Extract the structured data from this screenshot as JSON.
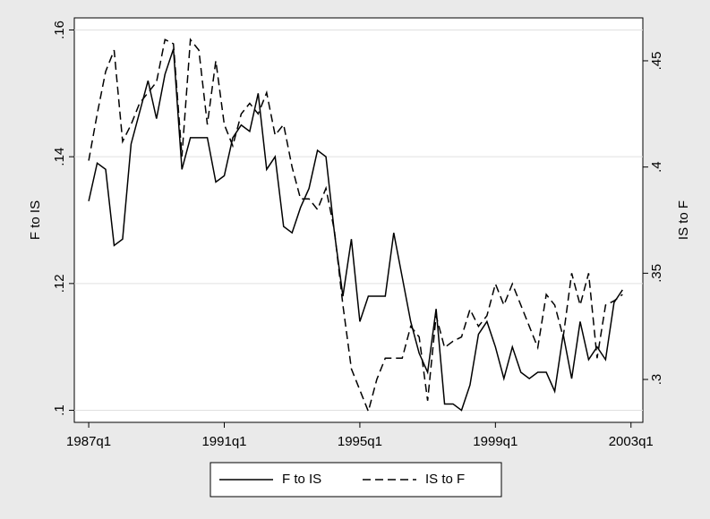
{
  "chart_data": {
    "type": "line",
    "x": [
      108,
      109,
      110,
      111,
      112,
      113,
      114,
      115,
      116,
      117,
      118,
      119,
      120,
      121,
      122,
      123,
      124,
      125,
      126,
      127,
      128,
      129,
      130,
      131,
      132,
      133,
      134,
      135,
      136,
      137,
      138,
      139,
      140,
      141,
      142,
      143,
      144,
      145,
      146,
      147,
      148,
      149,
      150,
      151,
      152,
      153,
      154,
      155,
      156,
      157,
      158,
      159,
      160,
      161,
      162,
      163,
      164,
      165,
      166,
      167,
      168,
      169,
      170,
      171
    ],
    "series": [
      {
        "name": "F to IS",
        "color": "#000000",
        "dash": "solid",
        "axis": "y",
        "values": [
          0.133,
          0.139,
          0.138,
          0.126,
          0.127,
          0.142,
          0.147,
          0.152,
          0.146,
          0.153,
          0.157,
          0.138,
          0.143,
          0.143,
          0.143,
          0.136,
          0.137,
          0.143,
          0.145,
          0.144,
          0.15,
          0.138,
          0.14,
          0.129,
          0.128,
          0.132,
          0.135,
          0.141,
          0.14,
          0.128,
          0.118,
          0.127,
          0.114,
          0.118,
          0.118,
          0.118,
          0.128,
          0.121,
          0.114,
          0.109,
          0.106,
          0.116,
          0.101,
          0.101,
          0.1,
          0.104,
          0.112,
          0.114,
          0.11,
          0.105,
          0.11,
          0.106,
          0.105,
          0.106,
          0.106,
          0.103,
          0.112,
          0.105,
          0.114,
          0.108,
          0.11,
          0.108,
          0.117,
          0.119
        ]
      },
      {
        "name": "IS to F",
        "color": "#000000",
        "dash": "dashed",
        "axis": "y2",
        "values": [
          0.403,
          0.425,
          0.445,
          0.455,
          0.412,
          0.42,
          0.43,
          0.435,
          0.44,
          0.46,
          0.458,
          0.405,
          0.46,
          0.455,
          0.42,
          0.45,
          0.42,
          0.41,
          0.425,
          0.43,
          0.425,
          0.435,
          0.415,
          0.42,
          0.4,
          0.385,
          0.385,
          0.38,
          0.39,
          0.37,
          0.335,
          0.305,
          0.295,
          0.285,
          0.3,
          0.31,
          0.31,
          0.31,
          0.325,
          0.32,
          0.29,
          0.33,
          0.315,
          0.318,
          0.32,
          0.333,
          0.325,
          0.33,
          0.345,
          0.335,
          0.345,
          0.335,
          0.325,
          0.315,
          0.34,
          0.335,
          0.32,
          0.35,
          0.335,
          0.35,
          0.31,
          0.335,
          0.337,
          0.34
        ]
      }
    ],
    "y_label": "F to IS",
    "y2_label": "IS to F",
    "xlim": [
      106.3,
      173.4
    ],
    "xticks": [
      {
        "value": 108,
        "label": "1987q1"
      },
      {
        "value": 124,
        "label": "1991q1"
      },
      {
        "value": 140,
        "label": "1995q1"
      },
      {
        "value": 156,
        "label": "1999q1"
      },
      {
        "value": 172,
        "label": "2003q1"
      }
    ],
    "ylim": [
      0.0981,
      0.1619
    ],
    "yticks": [
      {
        "value": 0.1,
        "label": ".1"
      },
      {
        "value": 0.12,
        "label": ".12"
      },
      {
        "value": 0.14,
        "label": ".14"
      },
      {
        "value": 0.16,
        "label": ".16"
      }
    ],
    "y2lim": [
      0.2798,
      0.4702
    ],
    "y2ticks": [
      {
        "value": 0.3,
        "label": ".3"
      },
      {
        "value": 0.35,
        "label": ".35"
      },
      {
        "value": 0.4,
        "label": ".4"
      },
      {
        "value": 0.45,
        "label": ".45"
      }
    ],
    "grid": true,
    "legend": "bottom"
  }
}
